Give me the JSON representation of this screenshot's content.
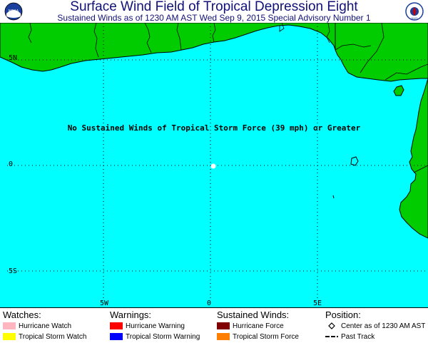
{
  "header": {
    "title": "Surface Wind Field of Tropical Depression Eight",
    "subtitle": "Sustained Winds as of 1230 AM AST Wed Sep 9, 2015   Special Advisory Number 1",
    "left_logo_icon": "noaa-logo-icon",
    "right_logo_icon": "nws-logo-icon",
    "left_logo_text": "NOAA",
    "right_logo_text": "NWS"
  },
  "map": {
    "colors": {
      "ocean": "#00FFFF",
      "land": "#00CC00",
      "border": "#000000"
    },
    "lat_labels": [
      "5N",
      "0",
      "5S"
    ],
    "lon_labels": [
      "5W",
      "0",
      "5E"
    ],
    "message": "No Sustained Winds of Tropical Storm Force (39 mph) or Greater",
    "center_marker": "white-dot"
  },
  "legend": {
    "watches": {
      "heading": "Watches:",
      "items": [
        {
          "label": "Hurricane Watch",
          "color": "#FFB6C1"
        },
        {
          "label": "Tropical Storm Watch",
          "color": "#FFFF00"
        }
      ]
    },
    "warnings": {
      "heading": "Warnings:",
      "items": [
        {
          "label": "Hurricane Warning",
          "color": "#FF0000"
        },
        {
          "label": "Tropical Storm Warning",
          "color": "#0000FF"
        }
      ]
    },
    "sustained_winds": {
      "heading": "Sustained Winds:",
      "items": [
        {
          "label": "Hurricane Force",
          "color": "#800000"
        },
        {
          "label": "Tropical Storm Force",
          "color": "#FF8000"
        }
      ]
    },
    "position": {
      "heading": "Position:",
      "items": [
        {
          "label": "Center as of 1230 AM AST",
          "icon": "diamond-icon"
        },
        {
          "label": "Past Track",
          "icon": "dashed-line-icon"
        }
      ]
    }
  }
}
